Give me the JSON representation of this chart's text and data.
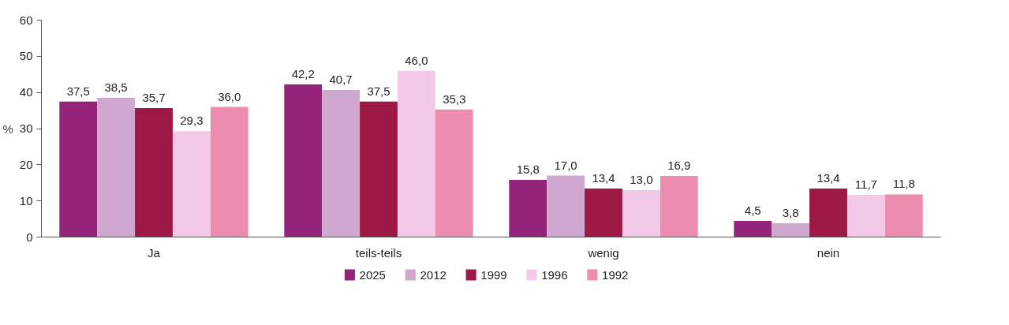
{
  "chart_data": {
    "type": "bar",
    "ylabel": "%",
    "categories": [
      "Ja",
      "teils-teils",
      "wenig",
      "nein"
    ],
    "series": [
      {
        "name": "2025",
        "color": "#93247a",
        "values": [
          37.5,
          42.2,
          15.8,
          4.5
        ],
        "value_labels": [
          "37,5",
          "42,2",
          "15,8",
          "4,5"
        ]
      },
      {
        "name": "2012",
        "color": "#cfa8cf",
        "values": [
          38.5,
          40.7,
          17.0,
          3.8
        ],
        "value_labels": [
          "38,5",
          "40,7",
          "17,0",
          "3,8"
        ]
      },
      {
        "name": "1999",
        "color": "#9c1845",
        "values": [
          35.7,
          37.5,
          13.4,
          13.4
        ],
        "value_labels": [
          "35,7",
          "37,5",
          "13,4",
          "13,4"
        ]
      },
      {
        "name": "1996",
        "color": "#f2c9e7",
        "values": [
          29.3,
          46.0,
          13.0,
          11.7
        ],
        "value_labels": [
          "29,3",
          "46,0",
          "13,0",
          "11,7"
        ]
      },
      {
        "name": "1992",
        "color": "#ec8db0",
        "values": [
          36.0,
          35.3,
          16.9,
          11.8
        ],
        "value_labels": [
          "36,0",
          "35,3",
          "16,9",
          "11,8"
        ]
      }
    ],
    "ylim": [
      0,
      60
    ],
    "yticks": [
      0,
      10,
      20,
      30,
      40,
      50,
      60
    ],
    "grid": false,
    "legend": "bottom"
  }
}
